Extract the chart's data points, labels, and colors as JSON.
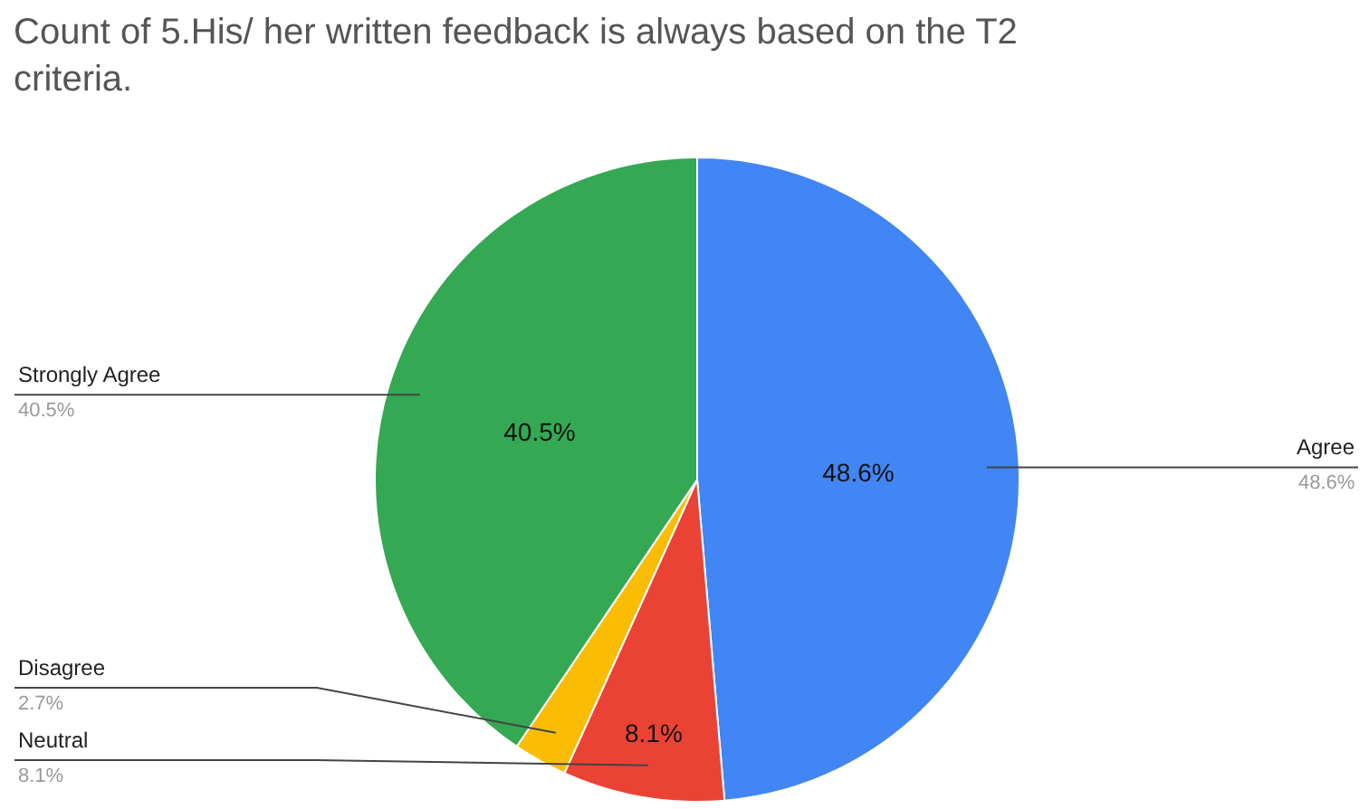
{
  "chart_data": {
    "type": "pie",
    "title": "Count of 5.His/ her written feedback is always based on the T2 criteria.",
    "categories": [
      "Agree",
      "Neutral",
      "Disagree",
      "Strongly Agree"
    ],
    "values": [
      48.6,
      8.1,
      2.7,
      40.5
    ],
    "colors": [
      "#4285f4",
      "#ea4335",
      "#fbbc04",
      "#34a853"
    ],
    "value_labels": [
      "48.6%",
      "8.1%",
      "2.7%",
      "40.5%"
    ],
    "legend": false
  }
}
